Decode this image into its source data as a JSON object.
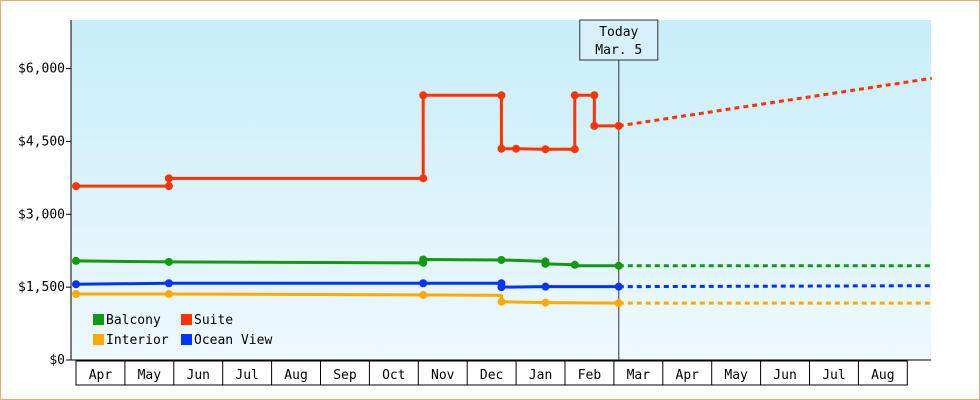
{
  "chart_data": {
    "type": "line",
    "title": "",
    "xlabel": "",
    "ylabel": "",
    "ylim": [
      0,
      7000
    ],
    "y_ticks": [
      {
        "value": 0,
        "label": "$0"
      },
      {
        "value": 1500,
        "label": "$1,500"
      },
      {
        "value": 3000,
        "label": "$3,000"
      },
      {
        "value": 4500,
        "label": "$4,500"
      },
      {
        "value": 6000,
        "label": "$6,000"
      }
    ],
    "x_ticks": [
      "Apr",
      "May",
      "Jun",
      "Jul",
      "Aug",
      "Sep",
      "Oct",
      "Nov",
      "Dec",
      "Jan",
      "Feb",
      "Mar",
      "Apr",
      "May",
      "Jun",
      "Jul",
      "Aug"
    ],
    "xlim": [
      0,
      17.5
    ],
    "today": {
      "x": 11.1,
      "line1": "Today",
      "line2": "Mar. 5"
    },
    "legend_position": "bottom-left",
    "series": [
      {
        "name": "Balcony",
        "color": "#119911",
        "points": [
          [
            0,
            2040
          ],
          [
            1.9,
            2020
          ],
          [
            7.1,
            2000
          ],
          [
            7.1,
            2070
          ],
          [
            8.7,
            2060
          ],
          [
            9.6,
            2030
          ],
          [
            9.6,
            1980
          ],
          [
            10.2,
            1960
          ],
          [
            10.2,
            1940
          ],
          [
            11.1,
            1940
          ]
        ],
        "markers": [
          [
            0,
            2040
          ],
          [
            1.9,
            2020
          ],
          [
            7.1,
            2000
          ],
          [
            7.1,
            2070
          ],
          [
            8.7,
            2060
          ],
          [
            9.6,
            2030
          ],
          [
            9.6,
            1980
          ],
          [
            10.2,
            1960
          ],
          [
            11.1,
            1940
          ]
        ],
        "forecast": [
          [
            11.1,
            1940
          ],
          [
            17.5,
            1940
          ]
        ]
      },
      {
        "name": "Suite",
        "color": "#ff3300",
        "points": [
          [
            0,
            3580
          ],
          [
            1.9,
            3580
          ],
          [
            1.9,
            3740
          ],
          [
            7.1,
            3740
          ],
          [
            7.1,
            5450
          ],
          [
            8.7,
            5450
          ],
          [
            8.7,
            4350
          ],
          [
            9.0,
            4350
          ],
          [
            9.6,
            4340
          ],
          [
            10.2,
            4340
          ],
          [
            10.2,
            5450
          ],
          [
            10.6,
            5450
          ],
          [
            10.6,
            4820
          ],
          [
            11.1,
            4820
          ]
        ],
        "markers": [
          [
            0,
            3580
          ],
          [
            1.9,
            3580
          ],
          [
            1.9,
            3740
          ],
          [
            7.1,
            3740
          ],
          [
            7.1,
            5450
          ],
          [
            8.7,
            5450
          ],
          [
            8.7,
            4350
          ],
          [
            9.0,
            4350
          ],
          [
            9.6,
            4340
          ],
          [
            10.2,
            4340
          ],
          [
            10.2,
            5450
          ],
          [
            10.6,
            5450
          ],
          [
            10.6,
            4820
          ],
          [
            11.1,
            4820
          ]
        ],
        "forecast": [
          [
            11.1,
            4820
          ],
          [
            17.5,
            5800
          ]
        ]
      },
      {
        "name": "Interior",
        "color": "#ffaa00",
        "points": [
          [
            0,
            1360
          ],
          [
            1.9,
            1360
          ],
          [
            7.1,
            1340
          ],
          [
            8.7,
            1330
          ],
          [
            8.7,
            1200
          ],
          [
            9.6,
            1180
          ],
          [
            11.1,
            1170
          ]
        ],
        "markers": [
          [
            0,
            1360
          ],
          [
            1.9,
            1360
          ],
          [
            7.1,
            1340
          ],
          [
            8.7,
            1200
          ],
          [
            9.6,
            1180
          ],
          [
            11.1,
            1170
          ]
        ],
        "forecast": [
          [
            11.1,
            1170
          ],
          [
            17.5,
            1170
          ]
        ]
      },
      {
        "name": "Ocean View",
        "color": "#0033ff",
        "points": [
          [
            0,
            1560
          ],
          [
            1.9,
            1580
          ],
          [
            7.1,
            1580
          ],
          [
            8.7,
            1580
          ],
          [
            8.7,
            1500
          ],
          [
            9.6,
            1510
          ],
          [
            11.1,
            1510
          ]
        ],
        "markers": [
          [
            0,
            1560
          ],
          [
            1.9,
            1580
          ],
          [
            7.1,
            1580
          ],
          [
            8.7,
            1580
          ],
          [
            8.7,
            1500
          ],
          [
            9.6,
            1510
          ],
          [
            11.1,
            1510
          ]
        ],
        "forecast": [
          [
            11.1,
            1510
          ],
          [
            17.5,
            1530
          ]
        ]
      }
    ],
    "legend": [
      {
        "name": "Balcony",
        "color": "#119911"
      },
      {
        "name": "Suite",
        "color": "#ff3300"
      },
      {
        "name": "Interior",
        "color": "#ffaa00"
      },
      {
        "name": "Ocean View",
        "color": "#0033ff"
      }
    ]
  }
}
